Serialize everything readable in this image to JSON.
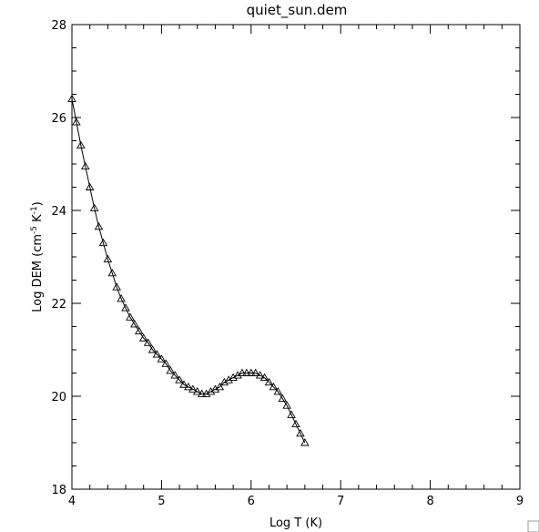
{
  "chart_data": {
    "type": "line",
    "title": "quiet_sun.dem",
    "xlabel": "Log T (K)",
    "ylabel": {
      "prefix": "Log DEM (cm",
      "exp1": "-5",
      "middle": " K",
      "exp2": "-1",
      "suffix": ")"
    },
    "xlim": [
      4,
      9
    ],
    "ylim": [
      18,
      28
    ],
    "xticks": [
      4,
      5,
      6,
      7,
      8,
      9
    ],
    "yticks": [
      18,
      20,
      22,
      24,
      26,
      28
    ],
    "marker": "triangle-open",
    "line_color": "#000000",
    "grid": false,
    "series": [
      {
        "x": [
          4.0,
          4.05,
          4.1,
          4.15,
          4.2,
          4.25,
          4.3,
          4.35,
          4.4,
          4.45,
          4.5,
          4.55,
          4.6,
          4.65,
          4.7,
          4.75,
          4.8,
          4.85,
          4.9,
          4.95,
          5.0,
          5.05,
          5.1,
          5.15,
          5.2,
          5.25,
          5.3,
          5.35,
          5.4,
          5.45,
          5.5,
          5.55,
          5.6,
          5.65,
          5.7,
          5.75,
          5.8,
          5.85,
          5.9,
          5.95,
          6.0,
          6.05,
          6.1,
          6.15,
          6.2,
          6.25,
          6.3,
          6.35,
          6.4,
          6.45,
          6.5,
          6.55,
          6.6
        ],
        "y": [
          26.4,
          25.9,
          25.4,
          24.95,
          24.5,
          24.05,
          23.65,
          23.3,
          22.95,
          22.65,
          22.35,
          22.1,
          21.9,
          21.7,
          21.55,
          21.4,
          21.25,
          21.15,
          21.0,
          20.9,
          20.8,
          20.7,
          20.55,
          20.45,
          20.35,
          20.25,
          20.2,
          20.15,
          20.1,
          20.05,
          20.05,
          20.1,
          20.15,
          20.2,
          20.3,
          20.35,
          20.4,
          20.45,
          20.5,
          20.5,
          20.5,
          20.5,
          20.45,
          20.4,
          20.3,
          20.2,
          20.1,
          19.95,
          19.8,
          19.6,
          19.4,
          19.2,
          19.0
        ]
      }
    ]
  }
}
